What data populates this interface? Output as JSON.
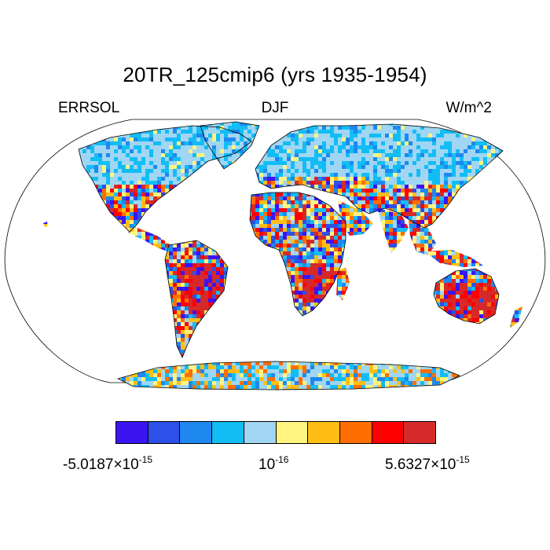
{
  "title": "20TR_125cmip6 (yrs 1935-1954)",
  "left_label": "ERRSOL",
  "center_label": "DJF",
  "right_label": "W/m^2",
  "colorbar": {
    "colors": [
      "#3c14f2",
      "#2c50e8",
      "#1e88f0",
      "#12bdf5",
      "#a0d6f3",
      "#fff480",
      "#ffbe14",
      "#ff6e00",
      "#ff0000",
      "#d62a2a"
    ],
    "min_mantissa": "-5.0187",
    "mid_mantissa": "10",
    "max_mantissa": "5.6327",
    "times": "×10",
    "min_exp": "-15",
    "mid_exp": "-16",
    "max_exp": "-15"
  },
  "map": {
    "projection": "Robinson",
    "ocean_masked": true
  }
}
